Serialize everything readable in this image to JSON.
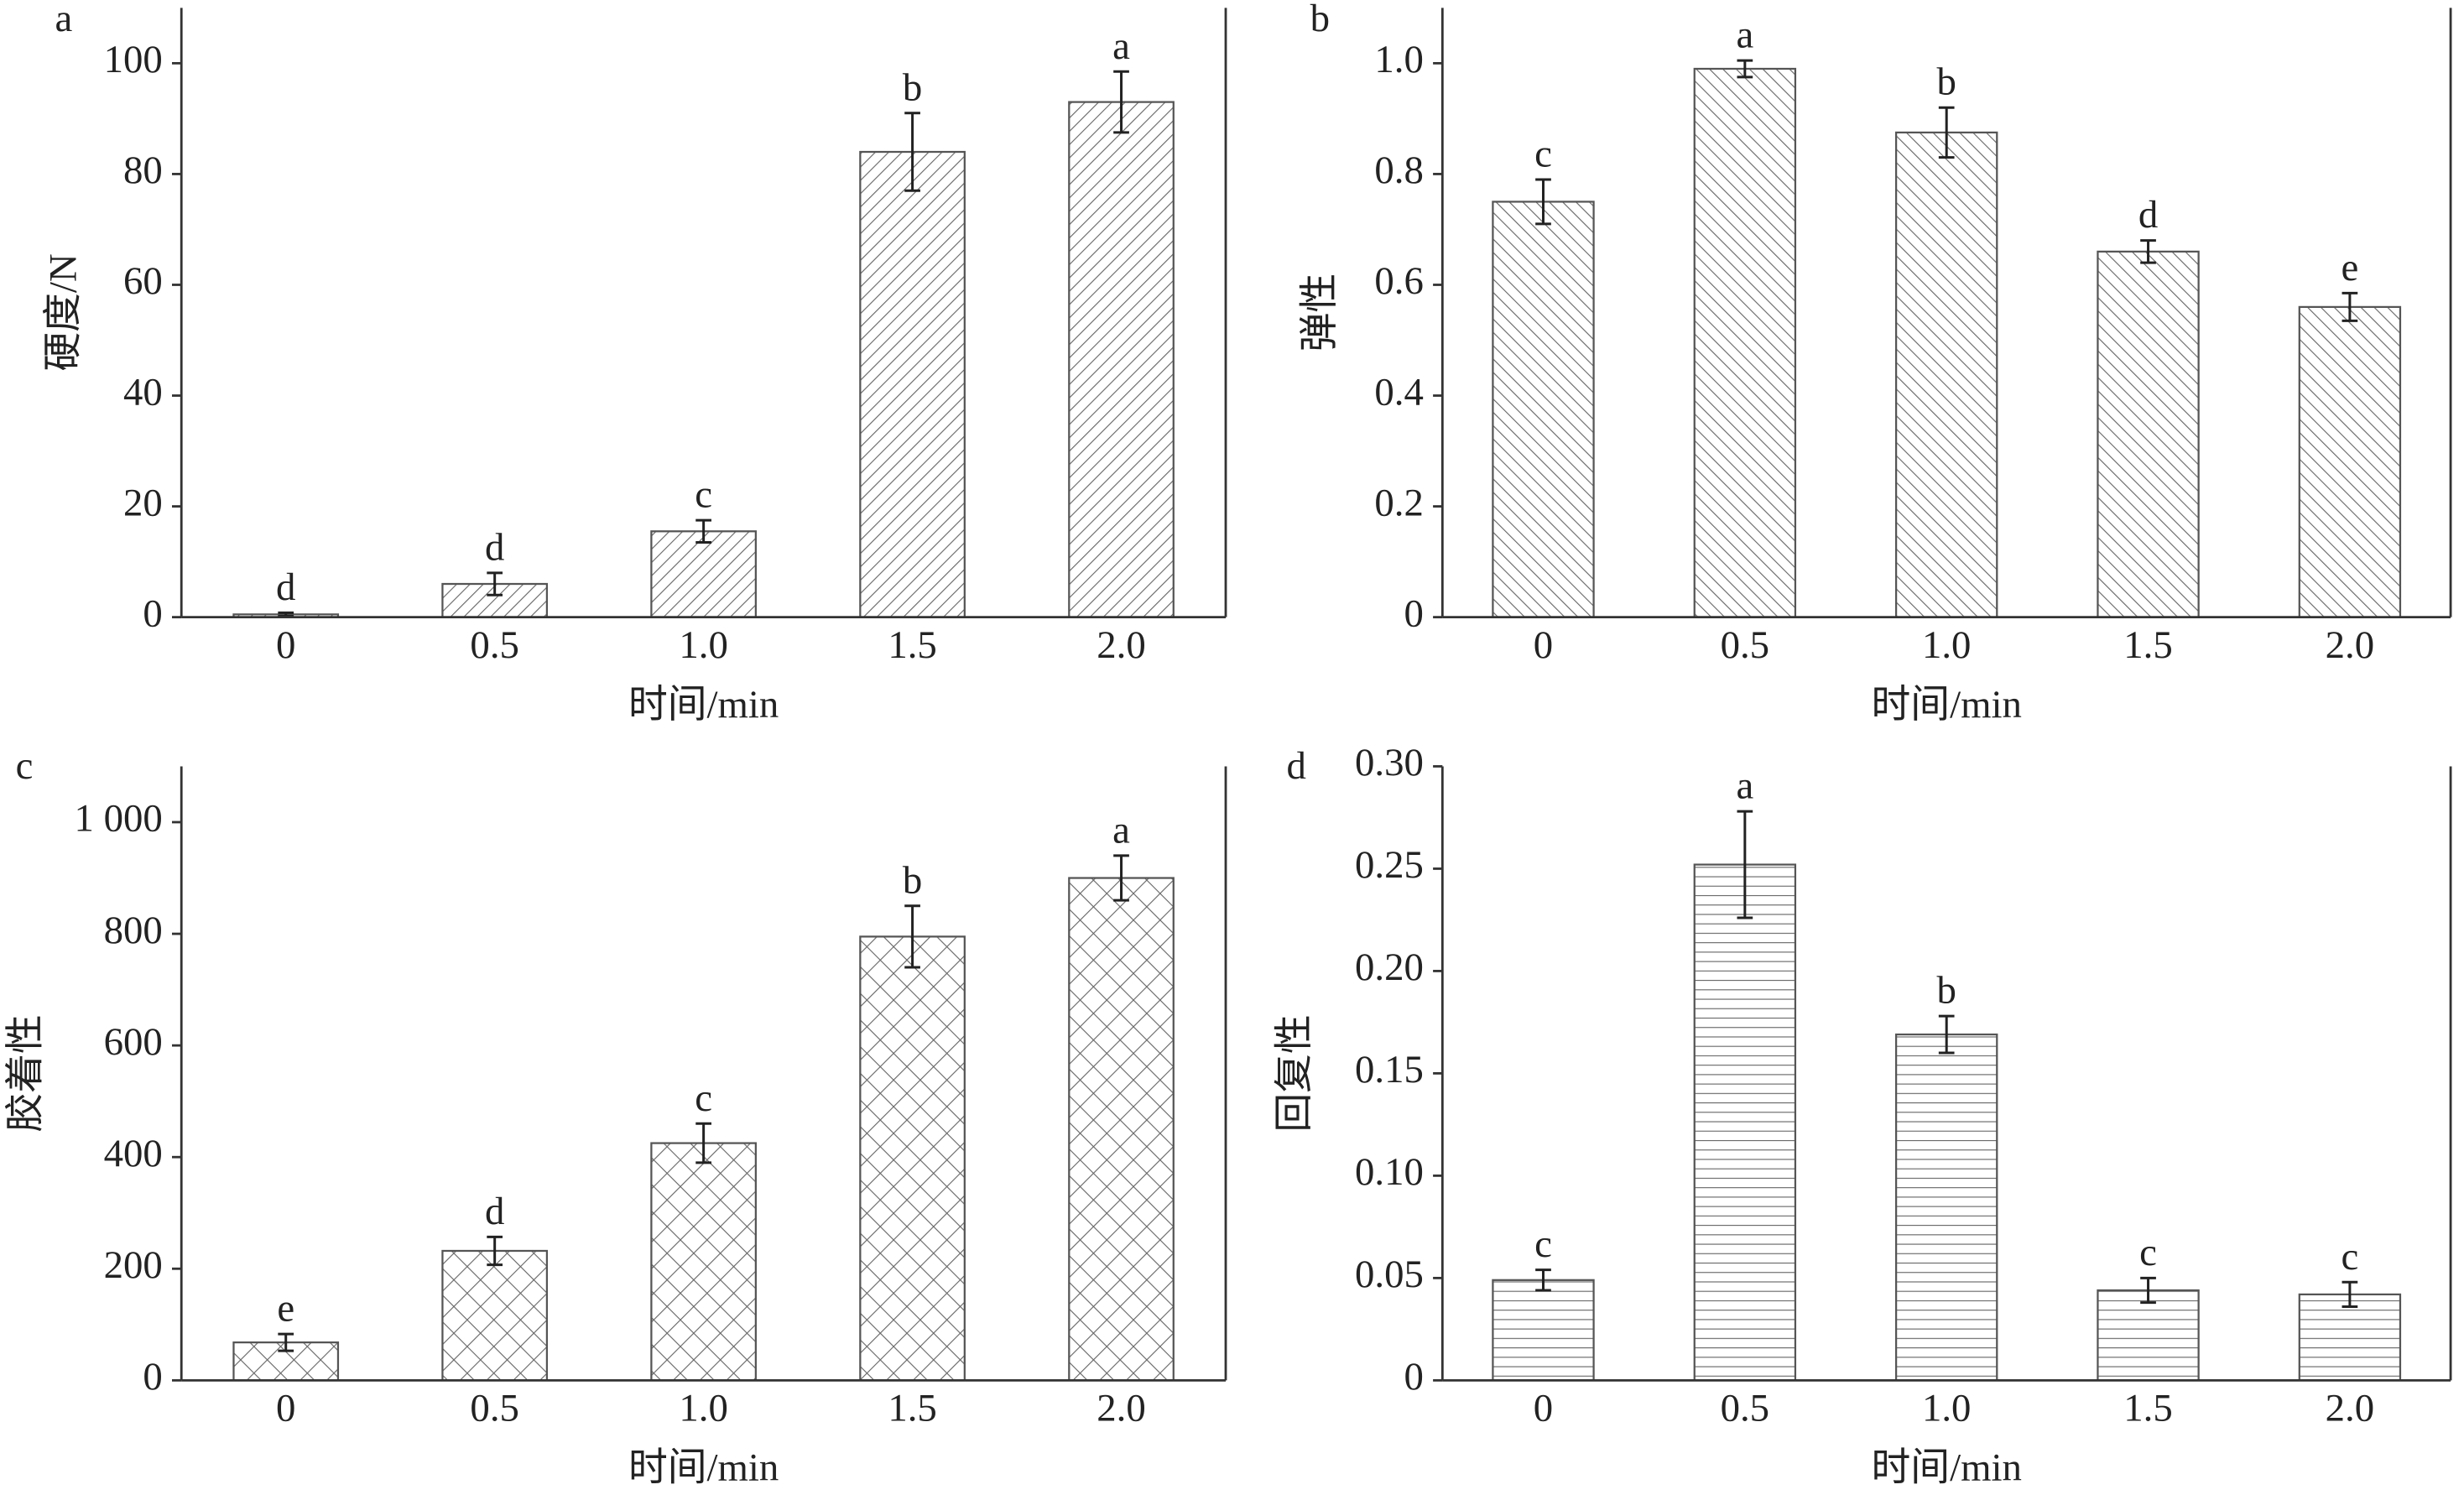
{
  "chart_data": [
    {
      "type": "bar",
      "panel_label": "a",
      "x_label": "时间/min",
      "y_label": "硬度/N",
      "categories": [
        "0",
        "0.5",
        "1.0",
        "1.5",
        "2.0"
      ],
      "values": [
        0.5,
        6,
        15.5,
        84,
        93
      ],
      "errors": [
        0.3,
        2,
        2,
        7,
        5.5
      ],
      "letters": [
        "d",
        "d",
        "c",
        "b",
        "a"
      ],
      "hatch": "forward",
      "ylim": [
        0,
        110
      ],
      "yticks": [
        0,
        20,
        40,
        60,
        80,
        100
      ]
    },
    {
      "type": "bar",
      "panel_label": "b",
      "x_label": "时间/min",
      "y_label": "弹性",
      "categories": [
        "0",
        "0.5",
        "1.0",
        "1.5",
        "2.0"
      ],
      "values": [
        0.75,
        0.99,
        0.875,
        0.66,
        0.56
      ],
      "errors": [
        0.04,
        0.015,
        0.045,
        0.02,
        0.025
      ],
      "letters": [
        "c",
        "a",
        "b",
        "d",
        "e"
      ],
      "hatch": "backward",
      "ylim": [
        0,
        1.1
      ],
      "yticks": [
        0,
        0.2,
        0.4,
        0.6,
        0.8,
        {
          "value": 1,
          "label": "1.0"
        }
      ]
    },
    {
      "type": "bar",
      "panel_label": "c",
      "x_label": "时间/min",
      "y_label": "胶着性",
      "categories": [
        "0",
        "0.5",
        "1.0",
        "1.5",
        "2.0"
      ],
      "values": [
        68,
        232,
        425,
        795,
        900
      ],
      "errors": [
        15,
        25,
        35,
        55,
        40
      ],
      "letters": [
        "e",
        "d",
        "c",
        "b",
        "a"
      ],
      "hatch": "cross",
      "ylim": [
        0,
        1100
      ],
      "yticks": [
        0,
        200,
        400,
        600,
        800,
        {
          "value": 1000,
          "label": "1 000"
        }
      ]
    },
    {
      "type": "bar",
      "panel_label": "d",
      "x_label": "时间/min",
      "y_label": "回复性",
      "categories": [
        "0",
        "0.5",
        "1.0",
        "1.5",
        "2.0"
      ],
      "values": [
        0.049,
        0.252,
        0.169,
        0.044,
        0.042
      ],
      "errors": [
        0.005,
        0.026,
        0.009,
        0.006,
        0.006
      ],
      "letters": [
        "c",
        "a",
        "b",
        "c",
        "c"
      ],
      "hatch": "horizontal",
      "ylim": [
        0,
        0.3
      ],
      "yticks": [
        0,
        0.05,
        {
          "value": 0.1,
          "label": "0.10"
        },
        0.15,
        {
          "value": 0.2,
          "label": "0.20"
        },
        0.25,
        {
          "value": 0.3,
          "label": "0.30"
        }
      ]
    }
  ]
}
